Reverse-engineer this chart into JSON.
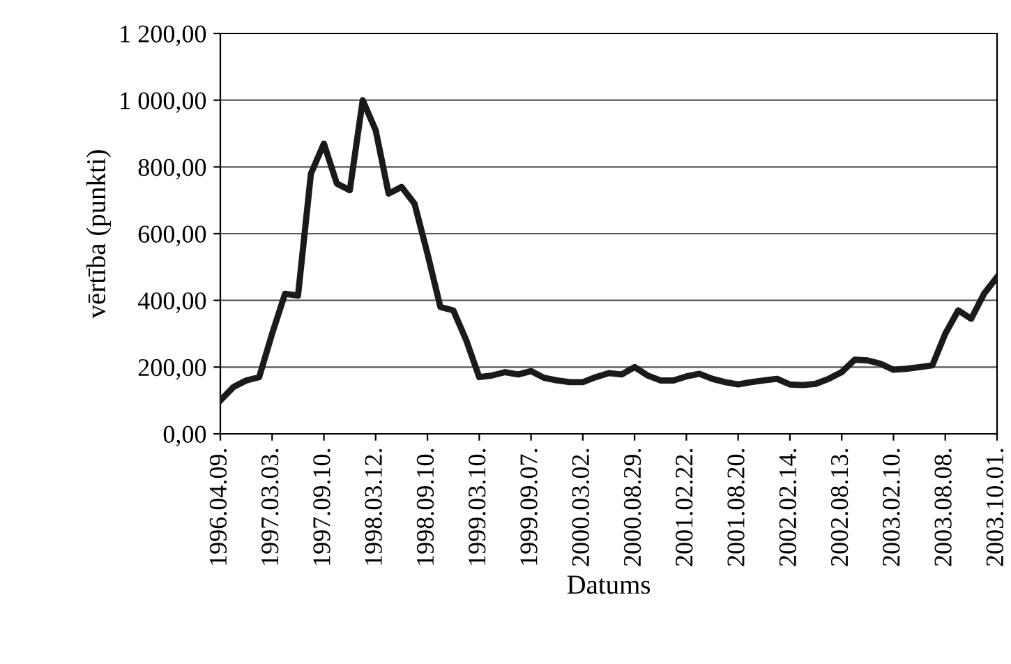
{
  "chart_data": {
    "type": "line",
    "xlabel": "Datums",
    "ylabel": "vērtība (punkti)",
    "categories": [
      "1996.04.09.",
      null,
      null,
      null,
      "1997.03.03.",
      null,
      null,
      null,
      "1997.09.10.",
      null,
      null,
      null,
      "1998.03.12.",
      null,
      null,
      null,
      "1998.09.10.",
      null,
      null,
      null,
      "1999.03.10.",
      null,
      null,
      null,
      "1999.09.07.",
      null,
      null,
      null,
      "2000.03.02.",
      null,
      null,
      null,
      "2000.08.29.",
      null,
      null,
      null,
      "2001.02.22.",
      null,
      null,
      null,
      "2001.08.20.",
      null,
      null,
      null,
      "2002.02.14.",
      null,
      null,
      null,
      "2002.08.13.",
      null,
      null,
      null,
      "2003.02.10.",
      null,
      null,
      null,
      "2003.08.08.",
      null,
      null,
      null,
      "2003.10.01."
    ],
    "series": [
      {
        "color": "#1a1a1a",
        "values": [
          100,
          140,
          160,
          170,
          300,
          420,
          414,
          780,
          870,
          750,
          730,
          1000,
          910,
          720,
          740,
          690,
          540,
          380,
          370,
          280,
          170,
          175,
          185,
          178,
          188,
          168,
          160,
          155,
          155,
          170,
          182,
          178,
          200,
          175,
          160,
          160,
          172,
          180,
          165,
          155,
          148,
          155,
          160,
          165,
          148,
          146,
          150,
          165,
          185,
          222,
          220,
          210,
          192,
          195,
          200,
          205,
          300,
          370,
          345,
          420,
          470
        ]
      }
    ],
    "ylim": [
      0,
      1200
    ],
    "yticks": [
      {
        "value": 0,
        "label": "0,00"
      },
      {
        "value": 200,
        "label": "200,00"
      },
      {
        "value": 400,
        "label": "400,00"
      },
      {
        "value": 600,
        "label": "600,00"
      },
      {
        "value": 800,
        "label": "800,00"
      },
      {
        "value": 1000,
        "label": "1 000,00"
      },
      {
        "value": 1200,
        "label": "1 200,00"
      }
    ],
    "grid": "y",
    "legend": false,
    "marker": "none",
    "line_style": "solid"
  }
}
